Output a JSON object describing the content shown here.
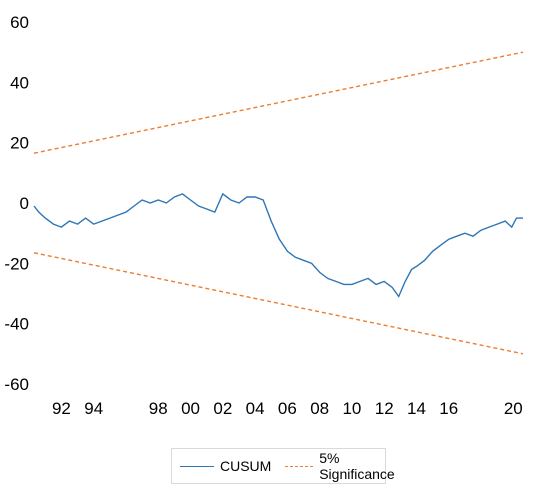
{
  "chart_data": {
    "type": "line",
    "title": "",
    "xlabel": "",
    "ylabel": "",
    "ylim": [
      -60,
      60
    ],
    "yticks": [
      60,
      40,
      20,
      0,
      -20,
      -40,
      -60
    ],
    "xticks": [
      "92",
      "94",
      "98",
      "00",
      "02",
      "04",
      "06",
      "08",
      "10",
      "12",
      "14",
      "16",
      "20"
    ],
    "xtick_years": [
      1992,
      1994,
      1998,
      2000,
      2002,
      2004,
      2006,
      2008,
      2010,
      2012,
      2014,
      2016,
      2020
    ],
    "xlim": [
      1990.3,
      2020.6
    ],
    "grid": false,
    "legend_position": "bottom",
    "series": [
      {
        "name": "CUSUM",
        "color": "#2e75b6",
        "style": "solid",
        "x": [
          1990.3,
          1990.6,
          1991.0,
          1991.5,
          1992.0,
          1992.5,
          1993.0,
          1993.5,
          1994.0,
          1994.5,
          1995.0,
          1995.5,
          1996.0,
          1996.5,
          1997.0,
          1997.5,
          1998.0,
          1998.5,
          1999.0,
          1999.5,
          2000.0,
          2000.5,
          2001.0,
          2001.5,
          2002.0,
          2002.5,
          2003.0,
          2003.5,
          2004.0,
          2004.5,
          2005.0,
          2005.5,
          2006.0,
          2006.5,
          2007.0,
          2007.5,
          2008.0,
          2008.5,
          2009.0,
          2009.5,
          2010.0,
          2010.5,
          2011.0,
          2011.5,
          2012.0,
          2012.5,
          2012.9,
          2013.3,
          2013.7,
          2014.0,
          2014.5,
          2015.0,
          2015.5,
          2016.0,
          2016.5,
          2017.0,
          2017.5,
          2018.0,
          2018.5,
          2019.0,
          2019.5,
          2019.9,
          2020.2,
          2020.6
        ],
        "values": [
          -1,
          -3,
          -5,
          -7,
          -8,
          -6,
          -7,
          -5,
          -7,
          -6,
          -5,
          -4,
          -3,
          -1,
          1,
          0,
          1,
          0,
          2,
          3,
          1,
          -1,
          -2,
          -3,
          3,
          1,
          0,
          2,
          2,
          1,
          -6,
          -12,
          -16,
          -18,
          -19,
          -20,
          -23,
          -25,
          -26,
          -27,
          -27,
          -26,
          -25,
          -27,
          -26,
          -28,
          -31,
          -26,
          -22,
          -21,
          -19,
          -16,
          -14,
          -12,
          -11,
          -10,
          -11,
          -9,
          -8,
          -7,
          -6,
          -8,
          -5,
          -5
        ]
      },
      {
        "name": "5% Significance",
        "color": "#ed7d31",
        "style": "dashed",
        "x": [
          1990.3,
          2020.6
        ],
        "values": [
          16.5,
          50
        ]
      },
      {
        "name": "",
        "color": "#ed7d31",
        "style": "dashed",
        "x": [
          1990.3,
          2020.6
        ],
        "values": [
          -16.5,
          -50
        ]
      }
    ]
  },
  "legend": {
    "items": [
      {
        "label": "CUSUM"
      },
      {
        "label": "5% Significance"
      }
    ]
  }
}
